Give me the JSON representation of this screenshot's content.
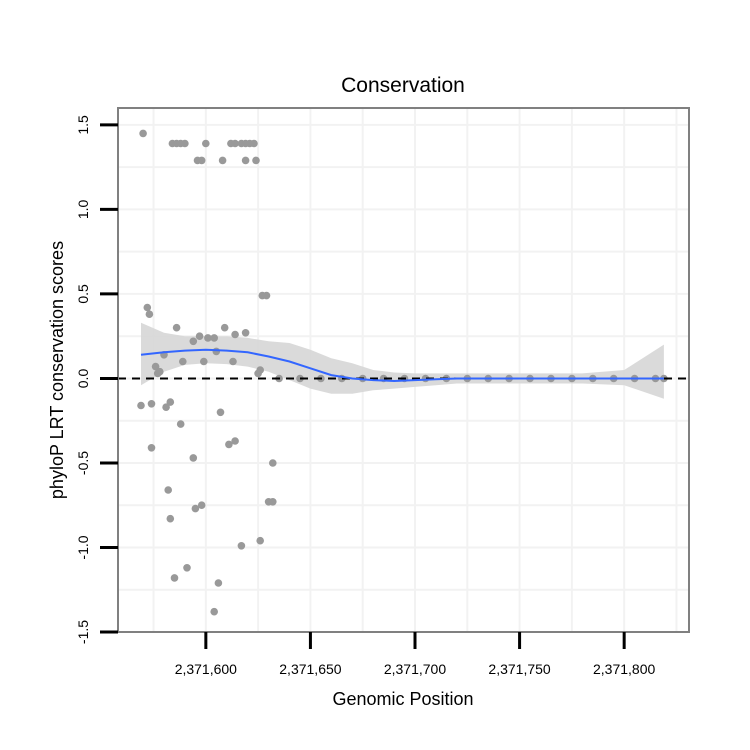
{
  "chart_data": {
    "type": "scatter",
    "title": "Conservation",
    "xlabel": "Genomic Position",
    "ylabel": "phyloP LRT conservation scores",
    "xlim": [
      2371558,
      2371831
    ],
    "ylim": [
      -1.5,
      1.6
    ],
    "x_ticks": [
      {
        "value": 2371600,
        "label": "2,371,600"
      },
      {
        "value": 2371650,
        "label": "2,371,650"
      },
      {
        "value": 2371700,
        "label": "2,371,700"
      },
      {
        "value": 2371750,
        "label": "2,371,750"
      },
      {
        "value": 2371800,
        "label": "2,371,800"
      }
    ],
    "y_ticks": [
      {
        "value": -1.5,
        "label": "-1.5"
      },
      {
        "value": -1.0,
        "label": "-1.0"
      },
      {
        "value": -0.5,
        "label": "-0.5"
      },
      {
        "value": 0.0,
        "label": "0.0"
      },
      {
        "value": 0.5,
        "label": "0.5"
      },
      {
        "value": 1.0,
        "label": "1.0"
      },
      {
        "value": 1.5,
        "label": "1.5"
      }
    ],
    "reference_line": {
      "y": 0,
      "style": "dashed",
      "color": "#000000"
    },
    "grid": true,
    "colors": {
      "points": "#999999",
      "smooth": "#3366FF",
      "ribbon": "#D6D6D6",
      "panel_border": "#808080",
      "grid": "#F2F2F2"
    },
    "points": [
      [
        2371570,
        1.45
      ],
      [
        2371584,
        1.39
      ],
      [
        2371586,
        1.39
      ],
      [
        2371588,
        1.39
      ],
      [
        2371590,
        1.39
      ],
      [
        2371596,
        1.29
      ],
      [
        2371598,
        1.29
      ],
      [
        2371600,
        1.39
      ],
      [
        2371608,
        1.29
      ],
      [
        2371612,
        1.39
      ],
      [
        2371614,
        1.39
      ],
      [
        2371617,
        1.39
      ],
      [
        2371619,
        1.39
      ],
      [
        2371621,
        1.39
      ],
      [
        2371623,
        1.39
      ],
      [
        2371619,
        1.29
      ],
      [
        2371624,
        1.29
      ],
      [
        2371572,
        0.42
      ],
      [
        2371573,
        0.38
      ],
      [
        2371586,
        0.3
      ],
      [
        2371609,
        0.3
      ],
      [
        2371619,
        0.27
      ],
      [
        2371614,
        0.26
      ],
      [
        2371597,
        0.25
      ],
      [
        2371601,
        0.24
      ],
      [
        2371604,
        0.24
      ],
      [
        2371594,
        0.22
      ],
      [
        2371605,
        0.16
      ],
      [
        2371580,
        0.14
      ],
      [
        2371599,
        0.1
      ],
      [
        2371589,
        0.1
      ],
      [
        2371613,
        0.1
      ],
      [
        2371576,
        0.07
      ],
      [
        2371578,
        0.04
      ],
      [
        2371577,
        0.03
      ],
      [
        2371625,
        0.03
      ],
      [
        2371626,
        0.05
      ],
      [
        2371627,
        0.49
      ],
      [
        2371629,
        0.49
      ],
      [
        2371569,
        -0.16
      ],
      [
        2371574,
        -0.15
      ],
      [
        2371583,
        -0.14
      ],
      [
        2371581,
        -0.17
      ],
      [
        2371607,
        -0.2
      ],
      [
        2371588,
        -0.27
      ],
      [
        2371614,
        -0.37
      ],
      [
        2371611,
        -0.39
      ],
      [
        2371574,
        -0.41
      ],
      [
        2371594,
        -0.47
      ],
      [
        2371632,
        -0.5
      ],
      [
        2371582,
        -0.66
      ],
      [
        2371630,
        -0.73
      ],
      [
        2371632,
        -0.73
      ],
      [
        2371598,
        -0.75
      ],
      [
        2371595,
        -0.77
      ],
      [
        2371583,
        -0.83
      ],
      [
        2371626,
        -0.96
      ],
      [
        2371617,
        -0.99
      ],
      [
        2371591,
        -1.12
      ],
      [
        2371585,
        -1.18
      ],
      [
        2371606,
        -1.21
      ],
      [
        2371604,
        -1.38
      ],
      [
        2371635,
        0.0
      ],
      [
        2371645,
        0.0
      ],
      [
        2371655,
        0.0
      ],
      [
        2371665,
        0.0
      ],
      [
        2371675,
        0.0
      ],
      [
        2371685,
        0.0
      ],
      [
        2371695,
        0.0
      ],
      [
        2371705,
        0.0
      ],
      [
        2371715,
        0.0
      ],
      [
        2371725,
        0.0
      ],
      [
        2371735,
        0.0
      ],
      [
        2371745,
        0.0
      ],
      [
        2371755,
        0.0
      ],
      [
        2371765,
        0.0
      ],
      [
        2371775,
        0.0
      ],
      [
        2371785,
        0.0
      ],
      [
        2371795,
        0.0
      ],
      [
        2371805,
        0.0
      ],
      [
        2371815,
        0.0
      ],
      [
        2371819,
        0.0
      ]
    ],
    "smooth": {
      "x": [
        2371569,
        2371580,
        2371590,
        2371600,
        2371610,
        2371620,
        2371630,
        2371640,
        2371650,
        2371660,
        2371670,
        2371680,
        2371690,
        2371700,
        2371710,
        2371720,
        2371740,
        2371760,
        2371780,
        2371800,
        2371819
      ],
      "y": [
        0.14,
        0.155,
        0.165,
        0.17,
        0.165,
        0.155,
        0.13,
        0.1,
        0.06,
        0.02,
        0.0,
        -0.01,
        -0.015,
        -0.01,
        -0.005,
        0.0,
        0.0,
        0.0,
        0.0,
        0.0,
        0.0
      ],
      "lower": [
        -0.04,
        0.04,
        0.08,
        0.09,
        0.085,
        0.07,
        0.04,
        -0.01,
        -0.06,
        -0.09,
        -0.09,
        -0.07,
        -0.06,
        -0.05,
        -0.04,
        -0.03,
        -0.03,
        -0.03,
        -0.03,
        -0.04,
        -0.12
      ],
      "upper": [
        0.33,
        0.27,
        0.25,
        0.25,
        0.25,
        0.24,
        0.22,
        0.21,
        0.17,
        0.12,
        0.09,
        0.05,
        0.035,
        0.03,
        0.03,
        0.03,
        0.03,
        0.03,
        0.03,
        0.05,
        0.2
      ]
    }
  }
}
